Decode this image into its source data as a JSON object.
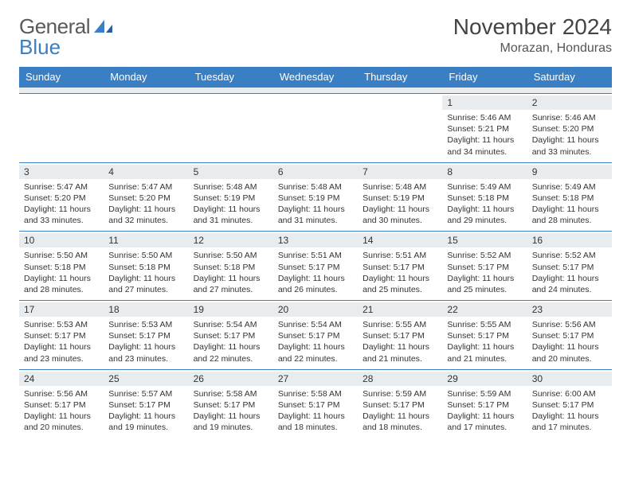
{
  "logo": {
    "word1": "General",
    "word2": "Blue"
  },
  "title": "November 2024",
  "location": "Morazan, Honduras",
  "dow": [
    "Sunday",
    "Monday",
    "Tuesday",
    "Wednesday",
    "Thursday",
    "Friday",
    "Saturday"
  ],
  "colors": {
    "header_bg": "#3a7fc4",
    "header_text": "#ffffff",
    "daynum_bg": "#e9ecef",
    "border": "#3a7fc4",
    "logo_gray": "#5a5a5a",
    "logo_blue": "#3a7fc4"
  },
  "weeks": [
    [
      {
        "n": "",
        "sr": "",
        "ss": "",
        "dl": ""
      },
      {
        "n": "",
        "sr": "",
        "ss": "",
        "dl": ""
      },
      {
        "n": "",
        "sr": "",
        "ss": "",
        "dl": ""
      },
      {
        "n": "",
        "sr": "",
        "ss": "",
        "dl": ""
      },
      {
        "n": "",
        "sr": "",
        "ss": "",
        "dl": ""
      },
      {
        "n": "1",
        "sr": "Sunrise: 5:46 AM",
        "ss": "Sunset: 5:21 PM",
        "dl": "Daylight: 11 hours and 34 minutes."
      },
      {
        "n": "2",
        "sr": "Sunrise: 5:46 AM",
        "ss": "Sunset: 5:20 PM",
        "dl": "Daylight: 11 hours and 33 minutes."
      }
    ],
    [
      {
        "n": "3",
        "sr": "Sunrise: 5:47 AM",
        "ss": "Sunset: 5:20 PM",
        "dl": "Daylight: 11 hours and 33 minutes."
      },
      {
        "n": "4",
        "sr": "Sunrise: 5:47 AM",
        "ss": "Sunset: 5:20 PM",
        "dl": "Daylight: 11 hours and 32 minutes."
      },
      {
        "n": "5",
        "sr": "Sunrise: 5:48 AM",
        "ss": "Sunset: 5:19 PM",
        "dl": "Daylight: 11 hours and 31 minutes."
      },
      {
        "n": "6",
        "sr": "Sunrise: 5:48 AM",
        "ss": "Sunset: 5:19 PM",
        "dl": "Daylight: 11 hours and 31 minutes."
      },
      {
        "n": "7",
        "sr": "Sunrise: 5:48 AM",
        "ss": "Sunset: 5:19 PM",
        "dl": "Daylight: 11 hours and 30 minutes."
      },
      {
        "n": "8",
        "sr": "Sunrise: 5:49 AM",
        "ss": "Sunset: 5:18 PM",
        "dl": "Daylight: 11 hours and 29 minutes."
      },
      {
        "n": "9",
        "sr": "Sunrise: 5:49 AM",
        "ss": "Sunset: 5:18 PM",
        "dl": "Daylight: 11 hours and 28 minutes."
      }
    ],
    [
      {
        "n": "10",
        "sr": "Sunrise: 5:50 AM",
        "ss": "Sunset: 5:18 PM",
        "dl": "Daylight: 11 hours and 28 minutes."
      },
      {
        "n": "11",
        "sr": "Sunrise: 5:50 AM",
        "ss": "Sunset: 5:18 PM",
        "dl": "Daylight: 11 hours and 27 minutes."
      },
      {
        "n": "12",
        "sr": "Sunrise: 5:50 AM",
        "ss": "Sunset: 5:18 PM",
        "dl": "Daylight: 11 hours and 27 minutes."
      },
      {
        "n": "13",
        "sr": "Sunrise: 5:51 AM",
        "ss": "Sunset: 5:17 PM",
        "dl": "Daylight: 11 hours and 26 minutes."
      },
      {
        "n": "14",
        "sr": "Sunrise: 5:51 AM",
        "ss": "Sunset: 5:17 PM",
        "dl": "Daylight: 11 hours and 25 minutes."
      },
      {
        "n": "15",
        "sr": "Sunrise: 5:52 AM",
        "ss": "Sunset: 5:17 PM",
        "dl": "Daylight: 11 hours and 25 minutes."
      },
      {
        "n": "16",
        "sr": "Sunrise: 5:52 AM",
        "ss": "Sunset: 5:17 PM",
        "dl": "Daylight: 11 hours and 24 minutes."
      }
    ],
    [
      {
        "n": "17",
        "sr": "Sunrise: 5:53 AM",
        "ss": "Sunset: 5:17 PM",
        "dl": "Daylight: 11 hours and 23 minutes."
      },
      {
        "n": "18",
        "sr": "Sunrise: 5:53 AM",
        "ss": "Sunset: 5:17 PM",
        "dl": "Daylight: 11 hours and 23 minutes."
      },
      {
        "n": "19",
        "sr": "Sunrise: 5:54 AM",
        "ss": "Sunset: 5:17 PM",
        "dl": "Daylight: 11 hours and 22 minutes."
      },
      {
        "n": "20",
        "sr": "Sunrise: 5:54 AM",
        "ss": "Sunset: 5:17 PM",
        "dl": "Daylight: 11 hours and 22 minutes."
      },
      {
        "n": "21",
        "sr": "Sunrise: 5:55 AM",
        "ss": "Sunset: 5:17 PM",
        "dl": "Daylight: 11 hours and 21 minutes."
      },
      {
        "n": "22",
        "sr": "Sunrise: 5:55 AM",
        "ss": "Sunset: 5:17 PM",
        "dl": "Daylight: 11 hours and 21 minutes."
      },
      {
        "n": "23",
        "sr": "Sunrise: 5:56 AM",
        "ss": "Sunset: 5:17 PM",
        "dl": "Daylight: 11 hours and 20 minutes."
      }
    ],
    [
      {
        "n": "24",
        "sr": "Sunrise: 5:56 AM",
        "ss": "Sunset: 5:17 PM",
        "dl": "Daylight: 11 hours and 20 minutes."
      },
      {
        "n": "25",
        "sr": "Sunrise: 5:57 AM",
        "ss": "Sunset: 5:17 PM",
        "dl": "Daylight: 11 hours and 19 minutes."
      },
      {
        "n": "26",
        "sr": "Sunrise: 5:58 AM",
        "ss": "Sunset: 5:17 PM",
        "dl": "Daylight: 11 hours and 19 minutes."
      },
      {
        "n": "27",
        "sr": "Sunrise: 5:58 AM",
        "ss": "Sunset: 5:17 PM",
        "dl": "Daylight: 11 hours and 18 minutes."
      },
      {
        "n": "28",
        "sr": "Sunrise: 5:59 AM",
        "ss": "Sunset: 5:17 PM",
        "dl": "Daylight: 11 hours and 18 minutes."
      },
      {
        "n": "29",
        "sr": "Sunrise: 5:59 AM",
        "ss": "Sunset: 5:17 PM",
        "dl": "Daylight: 11 hours and 17 minutes."
      },
      {
        "n": "30",
        "sr": "Sunrise: 6:00 AM",
        "ss": "Sunset: 5:17 PM",
        "dl": "Daylight: 11 hours and 17 minutes."
      }
    ]
  ]
}
